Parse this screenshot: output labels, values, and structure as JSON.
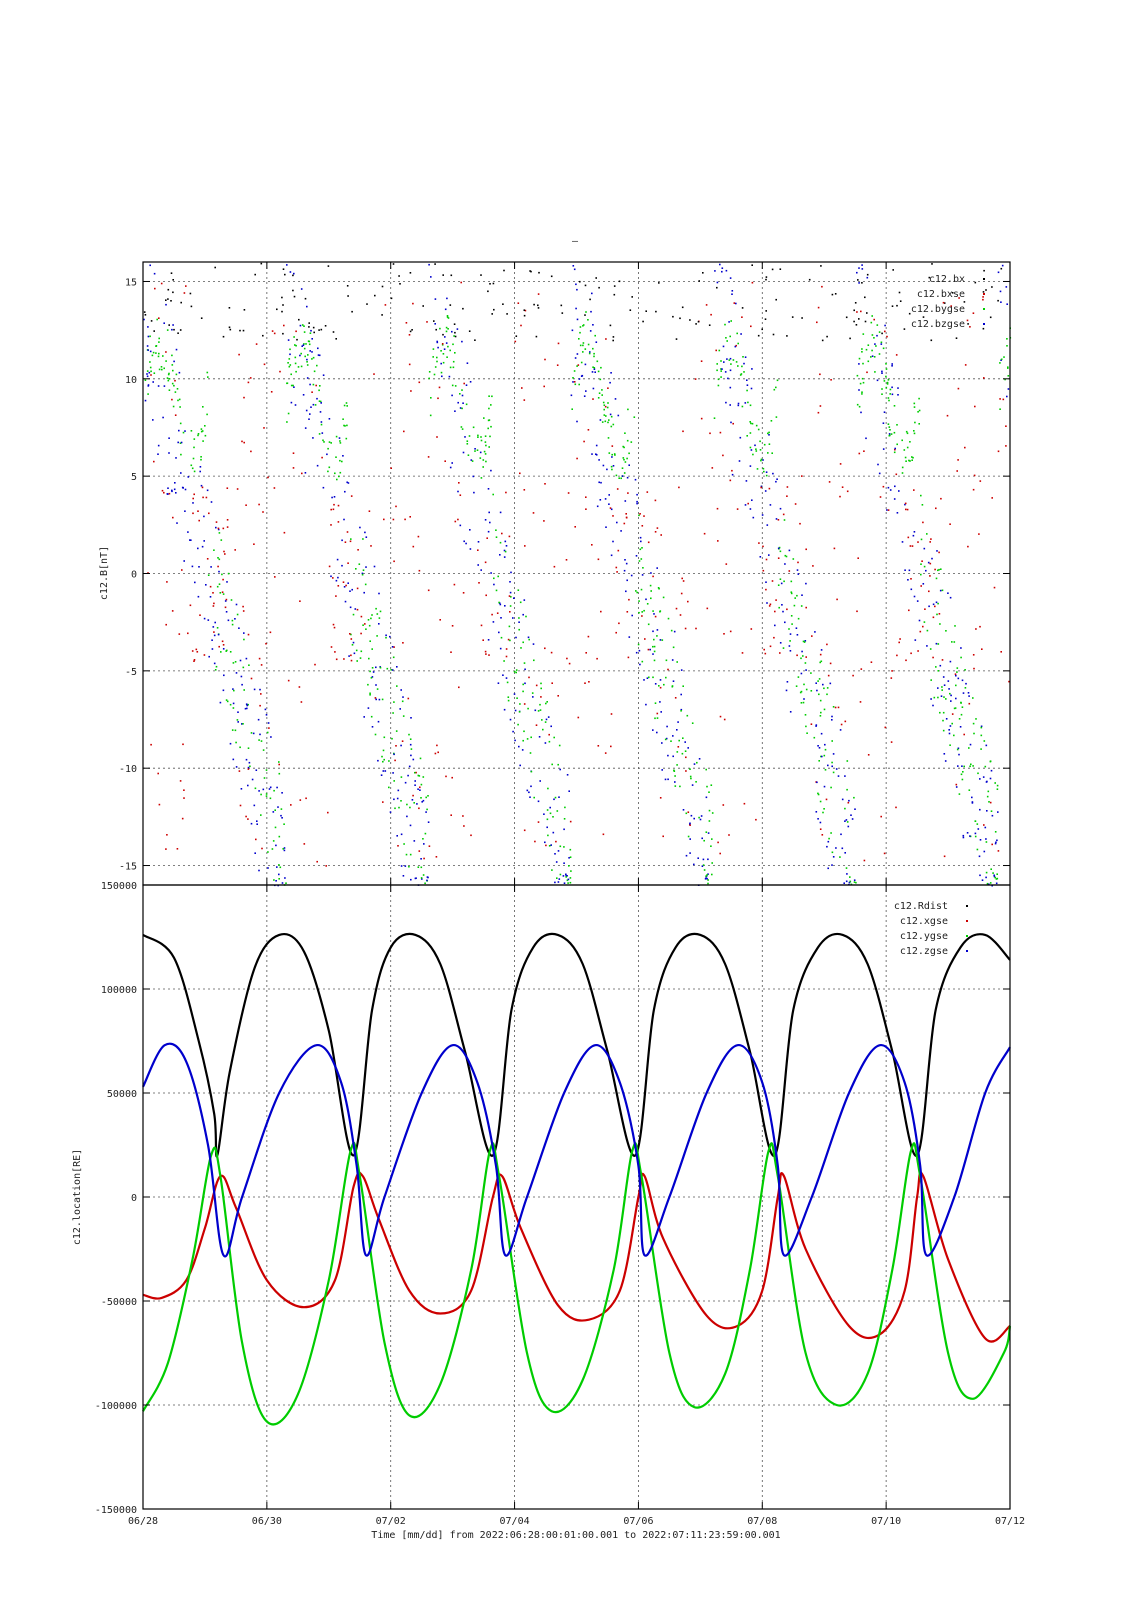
{
  "title": "–",
  "x_axis": {
    "label": "Time [mm/dd]  from 2022:06:28:00:01:00.001  to  2022:07:11:23:59:00.001",
    "range_days": [
      0,
      14
    ],
    "ticks": [
      {
        "day": 0,
        "label": "06/28"
      },
      {
        "day": 2,
        "label": "06/30"
      },
      {
        "day": 4,
        "label": "07/02"
      },
      {
        "day": 6,
        "label": "07/04"
      },
      {
        "day": 8,
        "label": "07/06"
      },
      {
        "day": 10,
        "label": "07/08"
      },
      {
        "day": 12,
        "label": "07/10"
      },
      {
        "day": 14,
        "label": "07/12"
      }
    ]
  },
  "chart_data": [
    {
      "type": "scatter",
      "ylabel": "c12.B[nT]",
      "ylim": [
        -16,
        16
      ],
      "yticks": [
        15,
        10,
        5,
        0,
        -5,
        -10,
        -15
      ],
      "grid": true,
      "legend_position": "top-right",
      "series": [
        {
          "name": "c12.bx",
          "color": "#000000",
          "kind": "scatter"
        },
        {
          "name": "c12.bxse",
          "color": "#cc0000",
          "kind": "scatter"
        },
        {
          "name": "c12.bygse",
          "color": "#00cc00",
          "kind": "scatter"
        },
        {
          "name": "c12.bzgse",
          "color": "#0000cc",
          "kind": "scatter"
        }
      ]
    },
    {
      "type": "line",
      "ylabel": "c12.location[RE]",
      "ylim": [
        -150000,
        150000
      ],
      "yticks": [
        150000,
        100000,
        50000,
        0,
        -50000,
        -100000,
        -150000
      ],
      "grid": true,
      "legend_position": "top-right",
      "series": [
        {
          "name": "c12.Rdist",
          "color": "#000000",
          "kind": "line",
          "points": [
            [
              0,
              126000
            ],
            [
              0.5,
              115000
            ],
            [
              0.9,
              75000
            ],
            [
              1.15,
              40000
            ],
            [
              1.2,
              20000
            ],
            [
              1.4,
              60000
            ],
            [
              1.8,
              110000
            ],
            [
              2.2,
              126000
            ],
            [
              2.6,
              118000
            ],
            [
              3.0,
              80000
            ],
            [
              3.4,
              20000
            ],
            [
              3.7,
              90000
            ],
            [
              4.0,
              120000
            ],
            [
              4.4,
              126000
            ],
            [
              4.8,
              112000
            ],
            [
              5.2,
              70000
            ],
            [
              5.65,
              20000
            ],
            [
              5.95,
              90000
            ],
            [
              6.3,
              120000
            ],
            [
              6.7,
              126000
            ],
            [
              7.1,
              112000
            ],
            [
              7.5,
              70000
            ],
            [
              7.95,
              20000
            ],
            [
              8.25,
              90000
            ],
            [
              8.6,
              120000
            ],
            [
              9.0,
              126000
            ],
            [
              9.4,
              112000
            ],
            [
              9.8,
              70000
            ],
            [
              10.2,
              20000
            ],
            [
              10.5,
              90000
            ],
            [
              10.9,
              120000
            ],
            [
              11.3,
              126000
            ],
            [
              11.7,
              112000
            ],
            [
              12.1,
              70000
            ],
            [
              12.5,
              20000
            ],
            [
              12.8,
              90000
            ],
            [
              13.2,
              120000
            ],
            [
              13.6,
              126000
            ],
            [
              14.0,
              114000
            ]
          ]
        },
        {
          "name": "c12.xgse",
          "color": "#cc0000",
          "kind": "line",
          "points": [
            [
              0,
              -47000
            ],
            [
              0.3,
              -48500
            ],
            [
              0.7,
              -40000
            ],
            [
              1.0,
              -15000
            ],
            [
              1.25,
              10000
            ],
            [
              1.5,
              -5000
            ],
            [
              2.0,
              -40000
            ],
            [
              2.6,
              -53000
            ],
            [
              3.1,
              -40000
            ],
            [
              3.4,
              5000
            ],
            [
              3.55,
              10000
            ],
            [
              3.8,
              -10000
            ],
            [
              4.3,
              -45000
            ],
            [
              4.8,
              -56000
            ],
            [
              5.3,
              -45000
            ],
            [
              5.65,
              0
            ],
            [
              5.8,
              10000
            ],
            [
              6.1,
              -15000
            ],
            [
              6.7,
              -52000
            ],
            [
              7.2,
              -59000
            ],
            [
              7.7,
              -45000
            ],
            [
              8.0,
              0
            ],
            [
              8.1,
              10000
            ],
            [
              8.4,
              -20000
            ],
            [
              9.1,
              -57000
            ],
            [
              9.6,
              -62000
            ],
            [
              10.0,
              -45000
            ],
            [
              10.25,
              0
            ],
            [
              10.35,
              10000
            ],
            [
              10.7,
              -25000
            ],
            [
              11.4,
              -62000
            ],
            [
              11.9,
              -66000
            ],
            [
              12.3,
              -45000
            ],
            [
              12.5,
              0
            ],
            [
              12.6,
              10000
            ],
            [
              13.0,
              -30000
            ],
            [
              13.6,
              -68000
            ],
            [
              14.0,
              -62000
            ]
          ]
        },
        {
          "name": "c12.ygse",
          "color": "#00cc00",
          "kind": "line",
          "points": [
            [
              0,
              -103000
            ],
            [
              0.4,
              -80000
            ],
            [
              0.8,
              -30000
            ],
            [
              1.1,
              20000
            ],
            [
              1.25,
              10000
            ],
            [
              1.6,
              -70000
            ],
            [
              2.0,
              -108000
            ],
            [
              2.5,
              -95000
            ],
            [
              3.0,
              -40000
            ],
            [
              3.35,
              22000
            ],
            [
              3.5,
              10000
            ],
            [
              3.9,
              -70000
            ],
            [
              4.3,
              -105000
            ],
            [
              4.8,
              -90000
            ],
            [
              5.3,
              -35000
            ],
            [
              5.6,
              22000
            ],
            [
              5.75,
              10000
            ],
            [
              6.2,
              -75000
            ],
            [
              6.6,
              -103000
            ],
            [
              7.1,
              -88000
            ],
            [
              7.6,
              -35000
            ],
            [
              7.9,
              22000
            ],
            [
              8.05,
              10000
            ],
            [
              8.5,
              -75000
            ],
            [
              8.9,
              -101000
            ],
            [
              9.4,
              -85000
            ],
            [
              9.8,
              -35000
            ],
            [
              10.1,
              22000
            ],
            [
              10.25,
              10000
            ],
            [
              10.7,
              -75000
            ],
            [
              11.2,
              -100000
            ],
            [
              11.7,
              -85000
            ],
            [
              12.1,
              -35000
            ],
            [
              12.4,
              22000
            ],
            [
              12.55,
              10000
            ],
            [
              13.0,
              -75000
            ],
            [
              13.4,
              -97000
            ],
            [
              13.9,
              -75000
            ],
            [
              14.0,
              -62000
            ]
          ]
        },
        {
          "name": "c12.zgse",
          "color": "#0000cc",
          "kind": "line",
          "points": [
            [
              0,
              53000
            ],
            [
              0.35,
              73000
            ],
            [
              0.7,
              65000
            ],
            [
              1.05,
              25000
            ],
            [
              1.3,
              -28000
            ],
            [
              1.6,
              0
            ],
            [
              2.2,
              50000
            ],
            [
              2.8,
              73000
            ],
            [
              3.2,
              55000
            ],
            [
              3.45,
              15000
            ],
            [
              3.6,
              -28000
            ],
            [
              3.9,
              0
            ],
            [
              4.5,
              50000
            ],
            [
              5.0,
              73000
            ],
            [
              5.4,
              55000
            ],
            [
              5.7,
              15000
            ],
            [
              5.85,
              -28000
            ],
            [
              6.2,
              0
            ],
            [
              6.8,
              50000
            ],
            [
              7.3,
              73000
            ],
            [
              7.7,
              55000
            ],
            [
              8.0,
              15000
            ],
            [
              8.1,
              -28000
            ],
            [
              8.5,
              0
            ],
            [
              9.1,
              50000
            ],
            [
              9.6,
              73000
            ],
            [
              10.0,
              55000
            ],
            [
              10.25,
              15000
            ],
            [
              10.35,
              -28000
            ],
            [
              10.8,
              0
            ],
            [
              11.4,
              50000
            ],
            [
              11.9,
              73000
            ],
            [
              12.3,
              55000
            ],
            [
              12.55,
              15000
            ],
            [
              12.65,
              -28000
            ],
            [
              13.1,
              0
            ],
            [
              13.6,
              50000
            ],
            [
              14.0,
              72000
            ]
          ]
        }
      ]
    }
  ]
}
